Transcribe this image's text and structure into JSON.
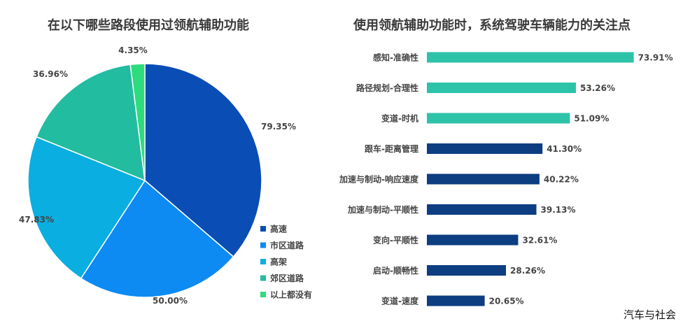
{
  "chart_data": [
    {
      "type": "pie",
      "title": "在以下哪些路段使用过领航辅助功能",
      "slices": [
        {
          "label": "高速",
          "value": 79.35,
          "display": "79.35%",
          "color": "#0A4DB5"
        },
        {
          "label": "市区道路",
          "value": 50.0,
          "display": "50.00%",
          "color": "#0D8BF2"
        },
        {
          "label": "高架",
          "value": 47.83,
          "display": "47.83%",
          "color": "#0AAEE0"
        },
        {
          "label": "郊区道路",
          "value": 36.96,
          "display": "36.96%",
          "color": "#22BCA0"
        },
        {
          "label": "以上都没有",
          "value": 4.35,
          "display": "4.35%",
          "color": "#2EDC7E"
        }
      ],
      "legend_position": "right"
    },
    {
      "type": "bar",
      "orientation": "horizontal",
      "title": "使用领航辅助功能时，系统驾驶车辆能力的关注点",
      "categories": [
        "感知-准确性",
        "路径规划-合理性",
        "变道-时机",
        "跟车-距离管理",
        "加速与制动-响应速度",
        "加速与制动-平顺性",
        "变向-平顺性",
        "启动-顺畅性",
        "变道-速度"
      ],
      "values": [
        73.91,
        53.26,
        51.09,
        41.3,
        40.22,
        39.13,
        32.61,
        28.26,
        20.65
      ],
      "value_labels": [
        "73.91%",
        "53.26%",
        "51.09%",
        "41.30%",
        "40.22%",
        "39.13%",
        "32.61%",
        "28.26%",
        "20.65%"
      ],
      "colors": [
        "#2DC3A8",
        "#2DC3A8",
        "#2DC3A8",
        "#0D3E82",
        "#0D3E82",
        "#0D3E82",
        "#0D3E82",
        "#0D3E82",
        "#0D3E82"
      ],
      "xlim": [
        0,
        80
      ]
    }
  ],
  "watermark": "汽车与社会"
}
